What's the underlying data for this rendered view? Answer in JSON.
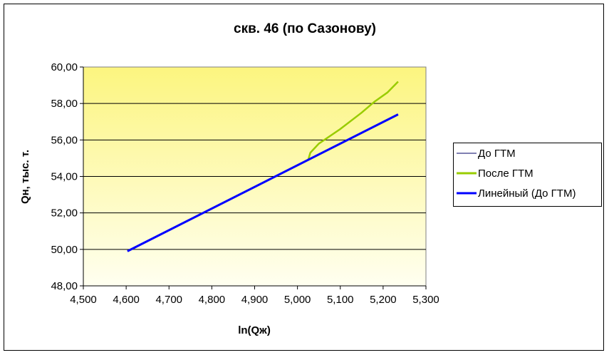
{
  "chart_data": {
    "type": "line",
    "title": "скв. 46 (по Сазонову)",
    "xlabel": "ln(Qж)",
    "ylabel": "Qн, тыс. т.",
    "xlim": [
      4.5,
      5.3
    ],
    "ylim": [
      48,
      60
    ],
    "xticks": [
      "4,500",
      "4,600",
      "4,700",
      "4,800",
      "4,900",
      "5,000",
      "5,100",
      "5,200",
      "5,300"
    ],
    "yticks": [
      "48,00",
      "50,00",
      "52,00",
      "54,00",
      "56,00",
      "58,00",
      "60,00"
    ],
    "grid": "horizontal",
    "legend_position": "right",
    "series": [
      {
        "name": "До ГТМ",
        "color": "#000066",
        "width": 1,
        "x": [
          4.603,
          4.7,
          4.8,
          4.85,
          4.9,
          4.95,
          5.0,
          5.02
        ],
        "y": [
          49.9,
          51.05,
          52.25,
          52.85,
          53.45,
          54.05,
          54.6,
          54.85
        ]
      },
      {
        "name": "После ГТМ",
        "color": "#99cc00",
        "width": 2.5,
        "x": [
          5.025,
          5.03,
          5.05,
          5.1,
          5.15,
          5.18,
          5.21,
          5.235
        ],
        "y": [
          54.9,
          55.3,
          55.8,
          56.6,
          57.5,
          58.1,
          58.6,
          59.2
        ]
      },
      {
        "name": "Линейный (До ГТМ)",
        "color": "#0000ff",
        "width": 3,
        "x": [
          4.603,
          5.235
        ],
        "y": [
          49.9,
          57.4
        ]
      }
    ]
  }
}
